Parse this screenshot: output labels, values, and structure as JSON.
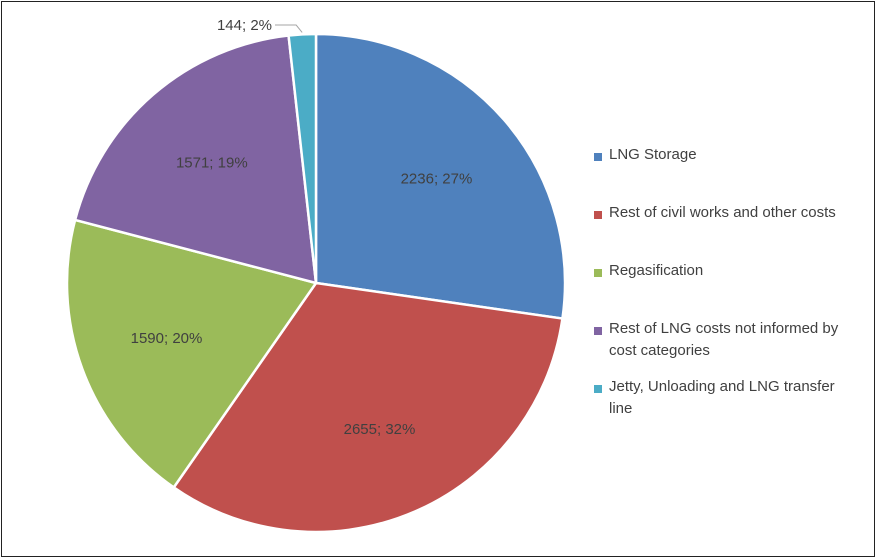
{
  "chart_data": {
    "type": "pie",
    "title": "",
    "slices": [
      {
        "name": "LNG Storage",
        "value": 2236,
        "percent": 27,
        "label": "2236; 27%",
        "color": "#4f81bd"
      },
      {
        "name": "Rest of civil works and other costs",
        "value": 2655,
        "percent": 32,
        "label": "2655; 32%",
        "color": "#c0504d"
      },
      {
        "name": "Regasification",
        "value": 1590,
        "percent": 20,
        "label": "1590; 20%",
        "color": "#9bbb59"
      },
      {
        "name": "Rest of LNG costs not informed by cost categories",
        "value": 1571,
        "percent": 19,
        "label": "1571; 19%",
        "color": "#8064a2"
      },
      {
        "name": "Jetty, Unloading and LNG transfer line",
        "value": 144,
        "percent": 2,
        "label": "144; 2%",
        "color": "#4bacc6"
      }
    ],
    "legend": {
      "placement": "right",
      "items": [
        {
          "line1": "LNG Storage",
          "line2": ""
        },
        {
          "line1": "Rest of civil works and other costs",
          "line2": ""
        },
        {
          "line1": "Regasification",
          "line2": ""
        },
        {
          "line1": "Rest of LNG costs not informed by",
          "line2": "cost categories"
        },
        {
          "line1": "Jetty, Unloading and LNG transfer",
          "line2": "line"
        }
      ]
    }
  }
}
